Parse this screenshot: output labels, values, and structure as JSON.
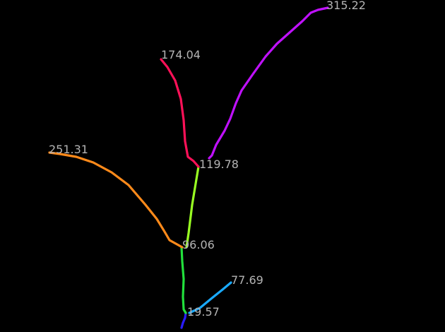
{
  "diagram": {
    "background": "#000000",
    "label_color": "#b4b4b4",
    "branches": [
      {
        "id": "root",
        "color": "#2a1cff"
      },
      {
        "id": "trunk-low",
        "color": "#22e03c"
      },
      {
        "id": "trunk-mid",
        "color": "#99ff22"
      },
      {
        "id": "red",
        "color": "#ff1158"
      },
      {
        "id": "purple",
        "color": "#c011ff"
      },
      {
        "id": "orange",
        "color": "#ff8a1a"
      },
      {
        "id": "blue",
        "color": "#1aaaff"
      }
    ],
    "labels": [
      {
        "id": "node-19",
        "text": "19.57"
      },
      {
        "id": "node-96",
        "text": "96.06"
      },
      {
        "id": "node-119",
        "text": "119.78"
      },
      {
        "id": "node-174",
        "text": "174.04"
      },
      {
        "id": "node-315",
        "text": "315.22"
      },
      {
        "id": "node-251",
        "text": "251.31"
      },
      {
        "id": "node-77",
        "text": "77.69"
      }
    ]
  }
}
